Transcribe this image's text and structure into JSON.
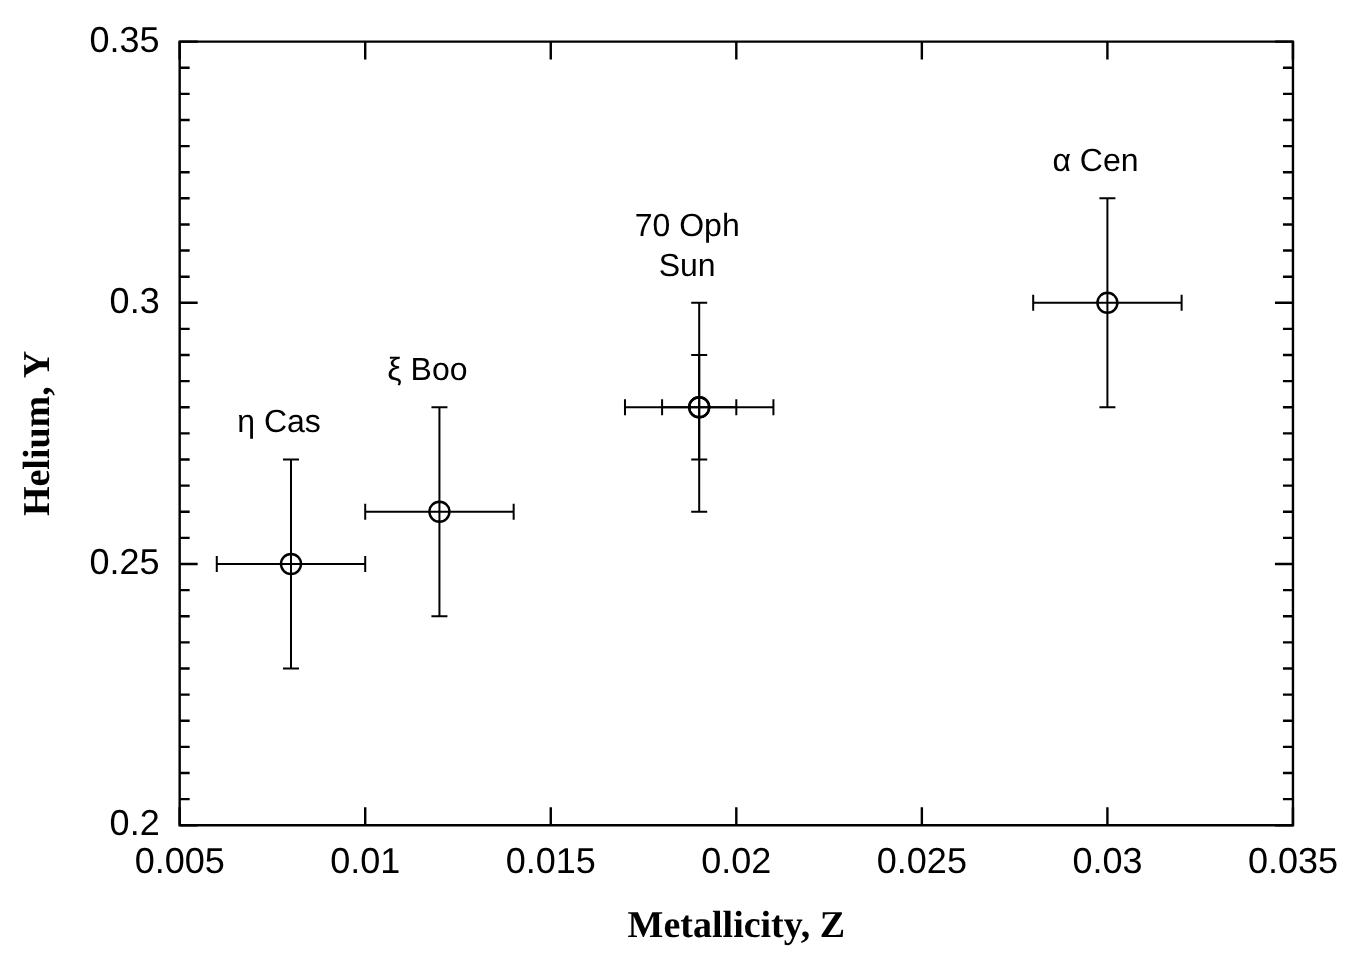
{
  "chart_data": {
    "type": "scatter",
    "xlabel": "Metallicity, Z",
    "ylabel": "Helium, Y",
    "x": [
      0.008,
      0.012,
      0.019,
      0.019,
      0.03
    ],
    "values": [
      0.25,
      0.26,
      0.28,
      0.28,
      0.3
    ],
    "errors": [
      0.02,
      0.02,
      0.02,
      0.01,
      0.02
    ],
    "xerrors": [
      0.002,
      0.002,
      0.002,
      0.001,
      0.002
    ],
    "color": "#000000",
    "marker": "circle",
    "grid": false,
    "legend": false,
    "xlim": [
      0.005,
      0.035
    ],
    "xticks": [
      0.005,
      0.01,
      0.015,
      0.02,
      0.025,
      0.03,
      0.035
    ],
    "ylim": [
      0.2,
      0.35
    ],
    "yticks": [
      {
        "value": 0.2,
        "label": "0.2"
      },
      {
        "value": 0.205,
        "label": null
      },
      {
        "value": 0.21,
        "label": null
      },
      {
        "value": 0.215,
        "label": null
      },
      {
        "value": 0.22,
        "label": null
      },
      {
        "value": 0.225,
        "label": null
      },
      {
        "value": 0.23,
        "label": null
      },
      {
        "value": 0.235,
        "label": null
      },
      {
        "value": 0.24,
        "label": null
      },
      {
        "value": 0.245,
        "label": null
      },
      {
        "value": 0.25,
        "label": "0.25"
      },
      {
        "value": 0.255,
        "label": null
      },
      {
        "value": 0.26,
        "label": null
      },
      {
        "value": 0.265,
        "label": null
      },
      {
        "value": 0.27,
        "label": null
      },
      {
        "value": 0.275,
        "label": null
      },
      {
        "value": 0.28,
        "label": null
      },
      {
        "value": 0.285,
        "label": null
      },
      {
        "value": 0.29,
        "label": null
      },
      {
        "value": 0.295,
        "label": null
      },
      {
        "value": 0.3,
        "label": "0.3"
      },
      {
        "value": 0.305,
        "label": null
      },
      {
        "value": 0.31,
        "label": null
      },
      {
        "value": 0.315,
        "label": null
      },
      {
        "value": 0.32,
        "label": null
      },
      {
        "value": 0.325,
        "label": null
      },
      {
        "value": 0.33,
        "label": null
      },
      {
        "value": 0.335,
        "label": null
      },
      {
        "value": 0.34,
        "label": null
      },
      {
        "value": 0.345,
        "label": null
      },
      {
        "value": 0.35,
        "label": "0.35"
      }
    ],
    "annotations": [
      "η Cas",
      "ξ Boo",
      "70 Oph",
      "Sun",
      "α Cen"
    ]
  }
}
